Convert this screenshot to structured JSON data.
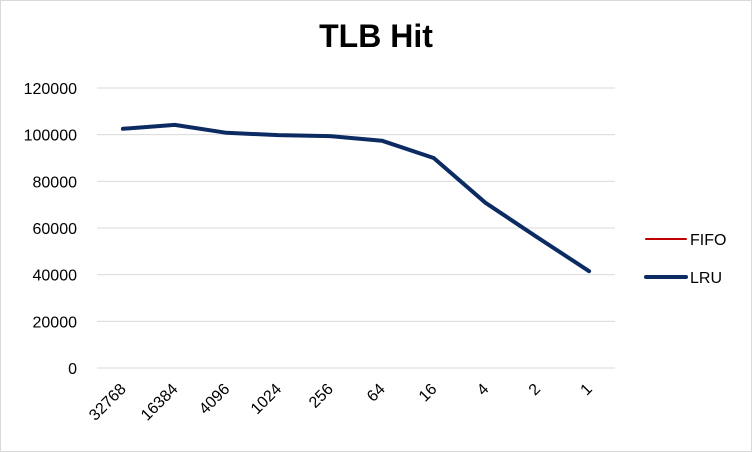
{
  "chart_data": {
    "type": "line",
    "title": "TLB Hit",
    "xlabel": "",
    "ylabel": "",
    "categories": [
      "32768",
      "16384",
      "4096",
      "1024",
      "256",
      "64",
      "16",
      "4",
      "2",
      "1"
    ],
    "ylim": [
      0,
      120000
    ],
    "yticks": [
      0,
      20000,
      40000,
      60000,
      80000,
      100000,
      120000
    ],
    "grid": true,
    "legend_position": "right",
    "series": [
      {
        "name": "FIFO",
        "color": "#c00000",
        "values": [
          102500,
          104200,
          100800,
          99800,
          99400,
          97400,
          90000,
          70800,
          56000,
          41500
        ]
      },
      {
        "name": "LRU",
        "color": "#0d2b63",
        "values": [
          102500,
          104200,
          100800,
          99800,
          99400,
          97400,
          90000,
          70800,
          56000,
          41500
        ]
      }
    ]
  }
}
